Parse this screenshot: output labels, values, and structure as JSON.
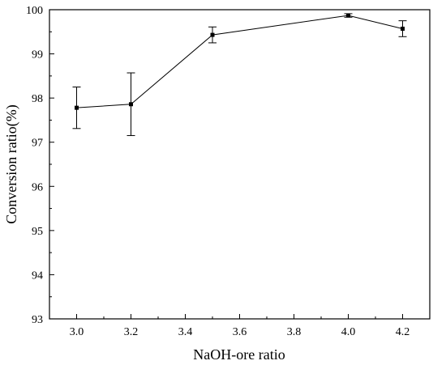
{
  "chart_data": {
    "type": "line",
    "xlabel": "NaOH-ore ratio",
    "ylabel": "Conversion ratio(%)",
    "xlim": [
      2.9,
      4.3
    ],
    "ylim": [
      93,
      100
    ],
    "x_ticks": [
      3.0,
      3.2,
      3.4,
      3.6,
      3.8,
      4.0,
      4.2
    ],
    "x_tick_labels": [
      "3.0",
      "3.2",
      "3.4",
      "3.6",
      "3.8",
      "4.0",
      "4.2"
    ],
    "y_ticks": [
      93,
      94,
      95,
      96,
      97,
      98,
      99,
      100
    ],
    "y_tick_labels": [
      "93",
      "94",
      "95",
      "96",
      "97",
      "98",
      "99",
      "100"
    ],
    "grid": false,
    "marker": "square",
    "series": [
      {
        "x": [
          3.0,
          3.2,
          3.5,
          4.0,
          4.2
        ],
        "y": [
          97.78,
          97.86,
          99.43,
          99.87,
          99.57
        ],
        "error": [
          0.47,
          0.71,
          0.18,
          0.04,
          0.18
        ]
      }
    ]
  }
}
